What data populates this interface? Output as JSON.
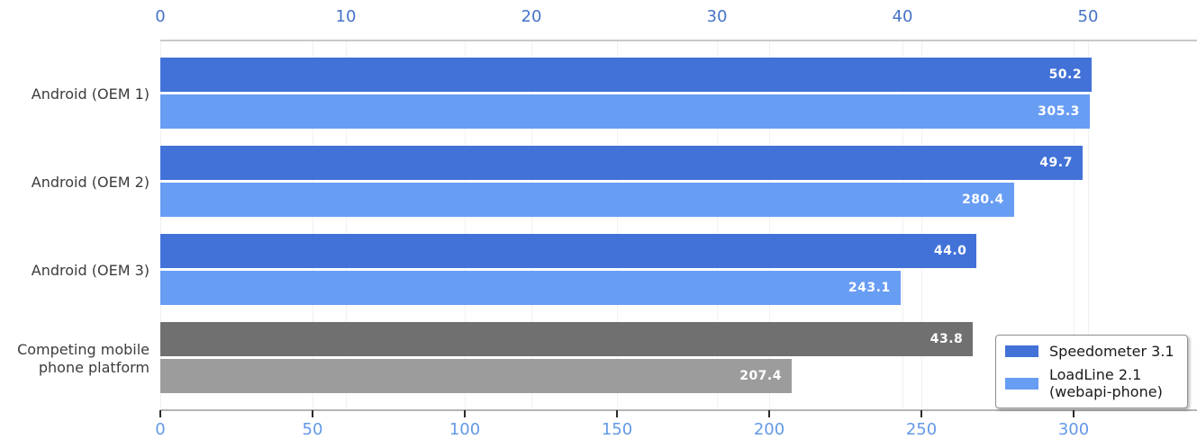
{
  "chart_data": {
    "type": "bar",
    "orientation": "horizontal",
    "title": "",
    "categories": [
      "Android (OEM 1)",
      "Android (OEM 2)",
      "Android (OEM 3)",
      "Competing mobile\nphone platform"
    ],
    "series": [
      {
        "name": "Speedometer 3.1",
        "axis": "top",
        "values": [
          50.2,
          49.7,
          44.0,
          43.8
        ],
        "value_labels": [
          "50.2",
          "49.7",
          "44.0",
          "43.8"
        ],
        "bar_colors": [
          "#4272d8",
          "#4272d8",
          "#4272d8",
          "#707070"
        ]
      },
      {
        "name": "LoadLine 2.1 (webapi-phone)",
        "axis": "bottom",
        "values": [
          305.3,
          280.4,
          243.1,
          207.4
        ],
        "value_labels": [
          "305.3",
          "280.4",
          "243.1",
          "207.4"
        ],
        "bar_colors": [
          "#689df4",
          "#689df4",
          "#689df4",
          "#9c9c9c"
        ]
      }
    ],
    "top_axis": {
      "ticks": [
        "0",
        "10",
        "20",
        "30",
        "40",
        "50"
      ],
      "range": [
        0,
        50
      ],
      "label_color": "#4673c8"
    },
    "bottom_axis": {
      "ticks": [
        "0",
        "50",
        "100",
        "150",
        "200",
        "250",
        "300"
      ],
      "range": [
        0,
        300
      ],
      "label_color": "#6399e8"
    },
    "legend": {
      "position": "lower right",
      "entries": [
        {
          "label": "Speedometer 3.1",
          "color": "#4272d8"
        },
        {
          "label": "LoadLine 2.1\n(webapi-phone)",
          "color": "#689df4"
        }
      ]
    },
    "grid": true
  }
}
